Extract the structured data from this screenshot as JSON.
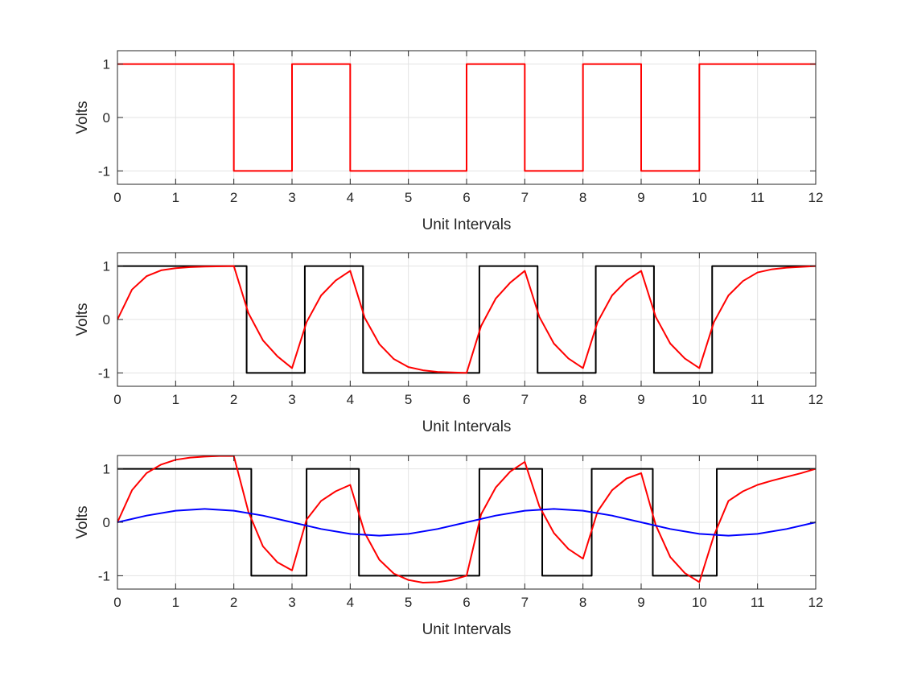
{
  "chart_data": [
    {
      "type": "line",
      "xlabel": "Unit Intervals",
      "ylabel": "Volts",
      "xlim": [
        0,
        12
      ],
      "ylim": [
        -1.25,
        1.25
      ],
      "xticks": [
        "0",
        "1",
        "2",
        "3",
        "4",
        "5",
        "6",
        "7",
        "8",
        "9",
        "10",
        "11",
        "12"
      ],
      "yticks": [
        "-1",
        "0",
        "1"
      ],
      "grid": true,
      "series": [
        {
          "kind": "step",
          "color": "#ff0000",
          "x": [
            0,
            2,
            2,
            3,
            3,
            4,
            4,
            6,
            6,
            7,
            7,
            8,
            8,
            9,
            9,
            10,
            10,
            12
          ],
          "y": [
            1,
            1,
            -1,
            -1,
            1,
            1,
            -1,
            -1,
            1,
            1,
            -1,
            -1,
            1,
            1,
            -1,
            -1,
            1,
            1
          ]
        }
      ]
    },
    {
      "type": "line",
      "xlabel": "Unit Intervals",
      "ylabel": "Volts",
      "xlim": [
        0,
        12
      ],
      "ylim": [
        -1.25,
        1.25
      ],
      "xticks": [
        "0",
        "1",
        "2",
        "3",
        "4",
        "5",
        "6",
        "7",
        "8",
        "9",
        "10",
        "11",
        "12"
      ],
      "yticks": [
        "-1",
        "0",
        "1"
      ],
      "grid": true,
      "series": [
        {
          "kind": "step",
          "color": "#000000",
          "x": [
            0,
            2.22,
            2.22,
            3.22,
            3.22,
            4.22,
            4.22,
            6.22,
            6.22,
            7.22,
            7.22,
            8.22,
            8.22,
            9.22,
            9.22,
            10.22,
            10.22,
            12
          ],
          "y": [
            1,
            1,
            -1,
            -1,
            1,
            1,
            -1,
            -1,
            1,
            1,
            -1,
            -1,
            1,
            1,
            -1,
            -1,
            1,
            1
          ]
        },
        {
          "kind": "curve",
          "color": "#ff0000",
          "x": [
            0,
            0.25,
            0.5,
            0.75,
            1,
            1.25,
            1.5,
            2,
            2.25,
            2.5,
            2.75,
            3,
            3.25,
            3.5,
            3.75,
            4,
            4.25,
            4.5,
            4.75,
            5,
            5.25,
            5.5,
            6,
            6.25,
            6.5,
            6.75,
            7,
            7.25,
            7.5,
            7.75,
            8,
            8.25,
            8.5,
            8.75,
            9,
            9.25,
            9.5,
            9.75,
            10,
            10.25,
            10.5,
            10.75,
            11,
            11.25,
            11.5,
            12
          ],
          "y": [
            0,
            0.56,
            0.81,
            0.92,
            0.96,
            0.98,
            0.99,
            1,
            0.12,
            -0.39,
            -0.69,
            -0.91,
            -0.05,
            0.45,
            0.73,
            0.91,
            0.03,
            -0.46,
            -0.74,
            -0.89,
            -0.95,
            -0.98,
            -1,
            -0.12,
            0.39,
            0.69,
            0.91,
            0.05,
            -0.45,
            -0.73,
            -0.91,
            -0.05,
            0.45,
            0.73,
            0.91,
            0.05,
            -0.45,
            -0.73,
            -0.91,
            -0.05,
            0.45,
            0.72,
            0.88,
            0.94,
            0.97,
            1
          ]
        }
      ]
    },
    {
      "type": "line",
      "xlabel": "Unit Intervals",
      "ylabel": "Volts",
      "xlim": [
        0,
        12
      ],
      "ylim": [
        -1.25,
        1.25
      ],
      "xticks": [
        "0",
        "1",
        "2",
        "3",
        "4",
        "5",
        "6",
        "7",
        "8",
        "9",
        "10",
        "11",
        "12"
      ],
      "yticks": [
        "-1",
        "0",
        "1"
      ],
      "grid": true,
      "series": [
        {
          "kind": "step",
          "color": "#000000",
          "x": [
            0,
            2.3,
            2.3,
            3.25,
            3.25,
            4.15,
            4.15,
            6.22,
            6.22,
            7.3,
            7.3,
            8.15,
            8.15,
            9.2,
            9.2,
            10.3,
            10.3,
            12
          ],
          "y": [
            1,
            1,
            -1,
            -1,
            1,
            1,
            -1,
            -1,
            1,
            1,
            -1,
            -1,
            1,
            1,
            -1,
            -1,
            1,
            1
          ]
        },
        {
          "kind": "curve",
          "color": "#ff0000",
          "x": [
            0,
            0.25,
            0.5,
            0.75,
            1,
            1.25,
            1.5,
            1.75,
            2,
            2.25,
            2.5,
            2.75,
            3,
            3.25,
            3.5,
            3.75,
            4,
            4.25,
            4.5,
            4.75,
            5,
            5.25,
            5.5,
            5.75,
            6,
            6.25,
            6.5,
            6.75,
            7,
            7.25,
            7.5,
            7.75,
            8,
            8.25,
            8.5,
            8.75,
            9,
            9.25,
            9.5,
            9.75,
            10,
            10.25,
            10.5,
            10.75,
            11,
            11.25,
            11.5,
            11.75,
            12
          ],
          "y": [
            0,
            0.6,
            0.92,
            1.08,
            1.17,
            1.21,
            1.23,
            1.24,
            1.24,
            0.2,
            -0.45,
            -0.75,
            -0.9,
            0.05,
            0.4,
            0.58,
            0.7,
            -0.2,
            -0.7,
            -0.96,
            -1.08,
            -1.13,
            -1.12,
            -1.08,
            -1.0,
            0.15,
            0.65,
            0.95,
            1.13,
            0.3,
            -0.2,
            -0.5,
            -0.68,
            0.2,
            0.6,
            0.82,
            0.92,
            -0.05,
            -0.65,
            -0.95,
            -1.12,
            -0.25,
            0.4,
            0.58,
            0.7,
            0.78,
            0.85,
            0.92,
            1.0
          ]
        },
        {
          "kind": "curve",
          "color": "#0000ff",
          "x": [
            0,
            0.5,
            1,
            1.5,
            2,
            2.5,
            3,
            3.5,
            4,
            4.5,
            5,
            5.5,
            6,
            6.5,
            7,
            7.5,
            8,
            8.5,
            9,
            9.5,
            10,
            10.5,
            11,
            11.5,
            12
          ],
          "y": [
            0,
            0.125,
            0.217,
            0.25,
            0.217,
            0.125,
            0,
            -0.125,
            -0.217,
            -0.25,
            -0.217,
            -0.125,
            0,
            0.125,
            0.217,
            0.25,
            0.217,
            0.125,
            0,
            -0.125,
            -0.217,
            -0.25,
            -0.217,
            -0.125,
            0
          ]
        }
      ]
    }
  ]
}
